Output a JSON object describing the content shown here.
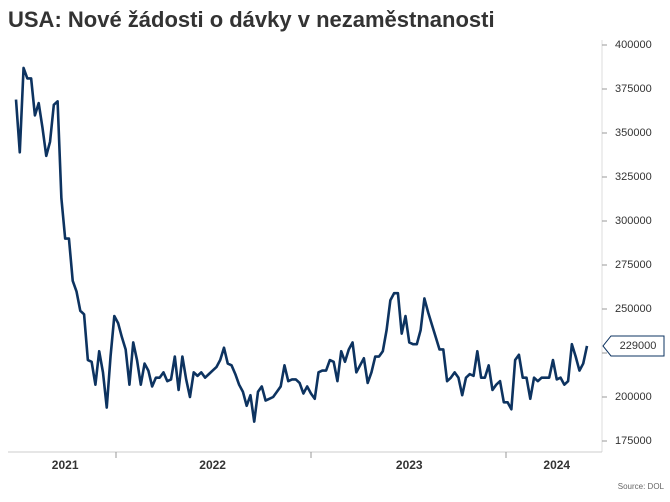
{
  "chart_data": {
    "type": "line",
    "title": "USA: Nové žádosti o dávky v nezaměstnanosti",
    "source": "Source: DOL",
    "color": "#0d3360",
    "ylim": [
      175000,
      400000
    ],
    "yticks": [
      175000,
      200000,
      225000,
      250000,
      275000,
      300000,
      325000,
      350000,
      375000,
      400000
    ],
    "categories": [
      null,
      null,
      null,
      null,
      null,
      null,
      null,
      null,
      null,
      null,
      null,
      null,
      null,
      "2021",
      null,
      null,
      null,
      null,
      null,
      null,
      null,
      null,
      null,
      null,
      null,
      null,
      null,
      null,
      null,
      null,
      null,
      null,
      null,
      null,
      null,
      null,
      null,
      null,
      null,
      null,
      null,
      null,
      null,
      null,
      null,
      null,
      null,
      null,
      null,
      null,
      null,
      null,
      "2022",
      null,
      null,
      null,
      null,
      null,
      null,
      null,
      null,
      null,
      null,
      null,
      null,
      null,
      null,
      null,
      null,
      null,
      null,
      null,
      null,
      null,
      null,
      null,
      null,
      null,
      null,
      null,
      null,
      null,
      null,
      null,
      null,
      null,
      null,
      null,
      null,
      null,
      null,
      null,
      null,
      null,
      null,
      null,
      null,
      null,
      null,
      null,
      null,
      null,
      null,
      null,
      "2023",
      null,
      null,
      null,
      null,
      null,
      null,
      null,
      null,
      null,
      null,
      null,
      null,
      null,
      null,
      null,
      null,
      null,
      null,
      null,
      null,
      null,
      null,
      null,
      null,
      null,
      null,
      null,
      null,
      null,
      null,
      null,
      null,
      null,
      null,
      null,
      null,
      null,
      null,
      "2024",
      null,
      null,
      null,
      null,
      null,
      null,
      null,
      null
    ],
    "values": [
      369000,
      339000,
      387000,
      381000,
      381000,
      360000,
      367000,
      353000,
      337000,
      345000,
      366000,
      368000,
      313000,
      290000,
      290000,
      266000,
      260000,
      249000,
      247000,
      221000,
      220000,
      207000,
      226000,
      214000,
      194000,
      223000,
      246000,
      242000,
      234000,
      227000,
      207000,
      231000,
      221000,
      207000,
      219000,
      215000,
      206000,
      211000,
      211000,
      214000,
      209000,
      210000,
      223000,
      204000,
      223000,
      210000,
      200000,
      214000,
      212000,
      214000,
      211000,
      213000,
      215000,
      217000,
      221000,
      228000,
      219000,
      218000,
      213000,
      207000,
      203000,
      195000,
      201000,
      186000,
      203000,
      206000,
      198000,
      199000,
      200000,
      203000,
      206000,
      218000,
      209000,
      210000,
      210000,
      208000,
      202000,
      206000,
      202000,
      199000,
      214000,
      215000,
      215000,
      221000,
      220000,
      209000,
      226000,
      220000,
      227000,
      231000,
      214000,
      218000,
      222000,
      208000,
      214000,
      223000,
      223000,
      226000,
      238000,
      255000,
      259000,
      259000,
      236000,
      246000,
      231000,
      230000,
      230000,
      238000,
      256000,
      248000,
      241000,
      234000,
      227000,
      227000,
      209000,
      211000,
      214000,
      211000,
      201000,
      211000,
      213000,
      212000,
      226000,
      211000,
      211000,
      218000,
      204000,
      207000,
      209000,
      197000,
      197000,
      193000,
      221000,
      224000,
      211000,
      211000,
      199000,
      211000,
      209000,
      211000,
      211000,
      211000,
      221000,
      210000,
      211000,
      207000,
      209000,
      230000,
      223000,
      215000,
      219000,
      229000
    ]
  }
}
